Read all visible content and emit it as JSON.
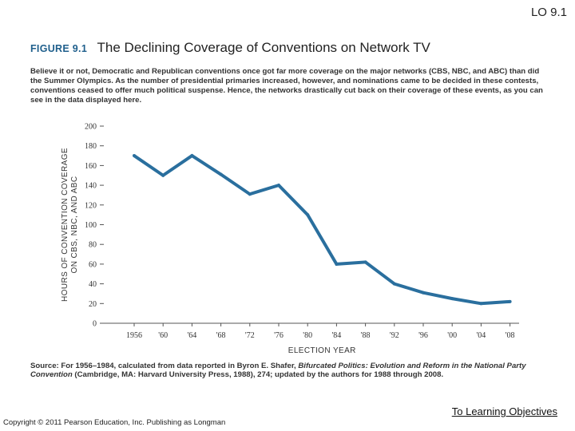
{
  "header": {
    "lo_label": "LO 9.1"
  },
  "figure": {
    "label": "FIGURE 9.1",
    "title": "The Declining Coverage of Conventions on Network TV",
    "caption": "Believe it or not, Democratic and Republican conventions once got far more coverage on the major networks (CBS, NBC, and ABC) than did the Summer Olympics. As the number of presidential primaries increased, however, and nominations came to be decided in these contests, conventions ceased to offer much political suspense. Hence, the networks drastically cut back on their coverage of these events, as you can see in the data displayed here.",
    "source_prefix": "Source: For 1956–1984, calculated from data reported in Byron E. Shafer, ",
    "source_title": "Bifurcated Politics: Evolution and Reform in the National Party Convention",
    "source_suffix": " (Cambridge, MA: Harvard University Press, 1988), 274; updated by the authors for 1988 through 2008."
  },
  "chart_data": {
    "type": "line",
    "title": "The Declining Coverage of Conventions on Network TV",
    "xlabel": "ELECTION YEAR",
    "ylabel_line1": "HOURS OF CONVENTION COVERAGE",
    "ylabel_line2": "ON CBS, NBC, AND ABC",
    "ylim": [
      0,
      200
    ],
    "yticks": [
      "0",
      "20",
      "40",
      "60",
      "80",
      "100",
      "120",
      "140",
      "160",
      "180",
      "200"
    ],
    "categories": [
      "1956",
      "'60",
      "'64",
      "'68",
      "'72",
      "'76",
      "'80",
      "'84",
      "'88",
      "'92",
      "'96",
      "'00",
      "'04",
      "'08"
    ],
    "values": [
      170,
      150,
      170,
      151,
      131,
      140,
      110,
      60,
      62,
      40,
      31,
      25,
      20,
      22
    ],
    "line_color": "#2a6f9e",
    "grid": false
  },
  "footer": {
    "link_label": "To Learning Objectives",
    "copyright": "Copyright © 2011 Pearson Education, Inc. Publishing as Longman"
  }
}
